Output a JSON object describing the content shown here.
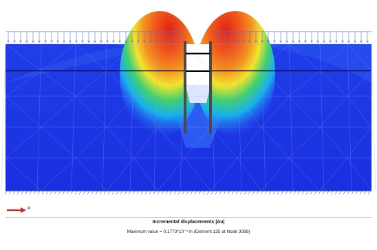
{
  "viewport": {
    "colors": {
      "deep_blue": "#1a2fe0",
      "mid_blue": "#2a55f0",
      "cyan": "#18b0ee",
      "green": "#3fd070",
      "yellow": "#f2e52c",
      "orange": "#f39320",
      "red": "#e32317",
      "wall": "#4a4a4a",
      "strut": "#000000",
      "load_arrow": "#5b6fd8",
      "background": "#ffffff"
    }
  },
  "axis": {
    "x_label": "x",
    "arrow_color": "#e02020"
  },
  "legend": {
    "title": "Incremental displacements |Δu|",
    "max_value": "Maximum value = 0,1773*10⁻³ m (Element 135 at Node 3088)"
  }
}
